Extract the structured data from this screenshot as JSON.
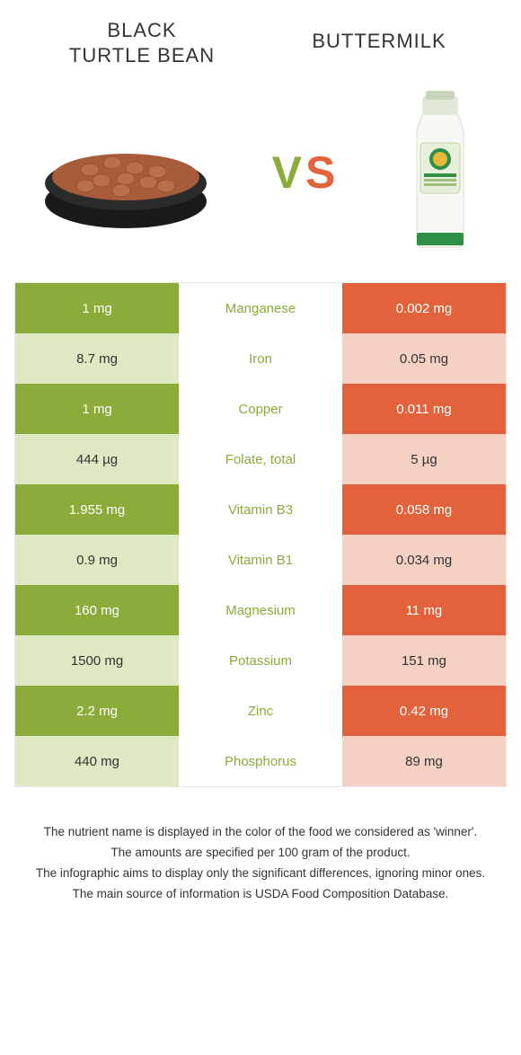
{
  "colors": {
    "food_left": "#8bab3b",
    "food_right": "#e2623c",
    "row_light_green": "#dee9c3",
    "row_mid_green": "#8bab3b",
    "row_light_orange": "#f5d1c3",
    "row_mid_orange": "#e2623c",
    "white": "#ffffff",
    "text_dark": "#333333"
  },
  "foods": {
    "left": {
      "name": "BLACK\nTURTLE BEAN"
    },
    "right": {
      "name": "BUTTERMILK"
    }
  },
  "vs": {
    "v": "V",
    "s": "S"
  },
  "table": {
    "rows": [
      {
        "left": "1 mg",
        "mid": "Manganese",
        "right": "0.002 mg",
        "winner": "left"
      },
      {
        "left": "8.7 mg",
        "mid": "Iron",
        "right": "0.05 mg",
        "winner": "left"
      },
      {
        "left": "1 mg",
        "mid": "Copper",
        "right": "0.011 mg",
        "winner": "left"
      },
      {
        "left": "444 µg",
        "mid": "Folate, total",
        "right": "5 µg",
        "winner": "left"
      },
      {
        "left": "1.955 mg",
        "mid": "Vitamin B3",
        "right": "0.058 mg",
        "winner": "left"
      },
      {
        "left": "0.9 mg",
        "mid": "Vitamin B1",
        "right": "0.034 mg",
        "winner": "left"
      },
      {
        "left": "160 mg",
        "mid": "Magnesium",
        "right": "11 mg",
        "winner": "left"
      },
      {
        "left": "1500 mg",
        "mid": "Potassium",
        "right": "151 mg",
        "winner": "left"
      },
      {
        "left": "2.2 mg",
        "mid": "Zinc",
        "right": "0.42 mg",
        "winner": "left"
      },
      {
        "left": "440 mg",
        "mid": "Phosphorus",
        "right": "89 mg",
        "winner": "left"
      }
    ]
  },
  "footer": [
    "The nutrient name is displayed in the color of the food we considered as 'winner'.",
    "The amounts are specified per 100 gram of the product.",
    "The infographic aims to display only the significant differences, ignoring minor ones.",
    "The main source of information is USDA Food Composition Database."
  ]
}
